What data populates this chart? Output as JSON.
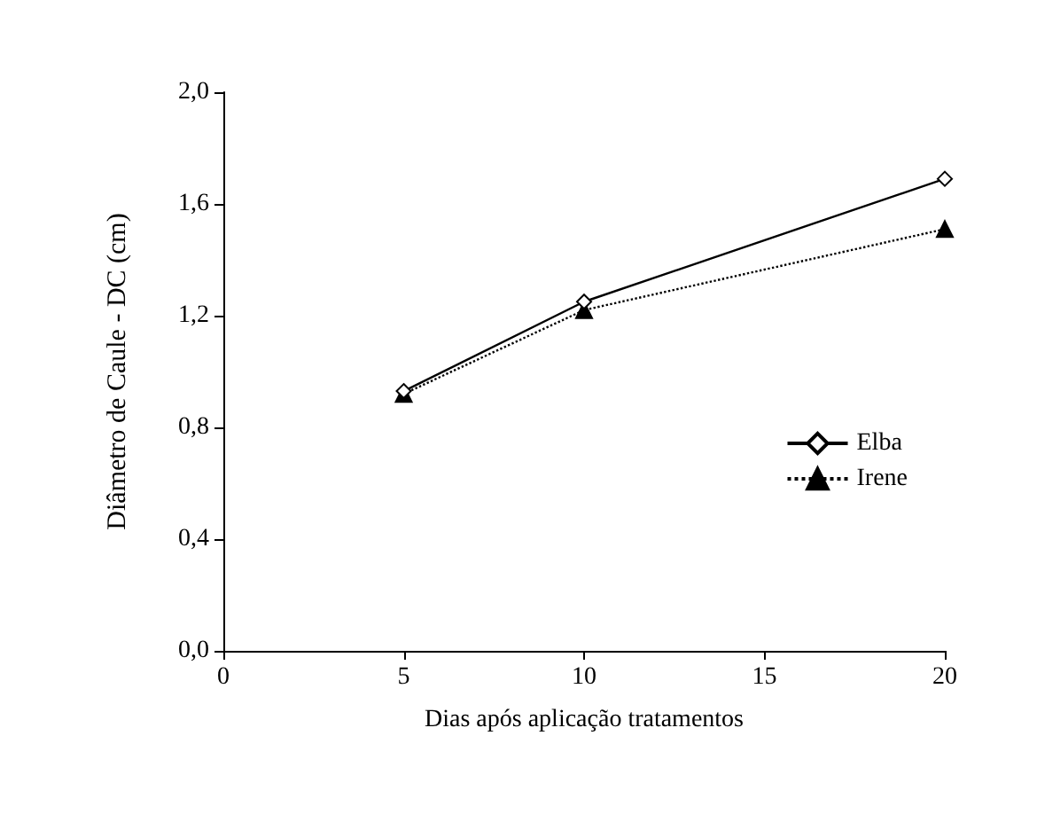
{
  "chart_data": {
    "type": "line",
    "xlabel": "Dias após aplicação tratamentos",
    "ylabel": "Diâmetro de Caule - DC (cm)",
    "x": [
      5,
      10,
      20
    ],
    "series": [
      {
        "name": "Elba",
        "color": "#000000",
        "values": [
          0.93,
          1.25,
          1.69
        ],
        "marker": "diamond",
        "line_style": "solid"
      },
      {
        "name": "Irene",
        "color": "#000000",
        "values": [
          0.92,
          1.22,
          1.51
        ],
        "marker": "triangle",
        "line_style": "dotted"
      }
    ],
    "xlim": [
      0,
      20
    ],
    "xticks": [
      0,
      5,
      10,
      15,
      20
    ],
    "ylim": [
      0,
      2
    ],
    "yticks": [
      {
        "value": 0,
        "label": "0,0"
      },
      {
        "value": 0.4,
        "label": "0,4"
      },
      {
        "value": 0.8,
        "label": "0,8"
      },
      {
        "value": 1.2,
        "label": "1,2"
      },
      {
        "value": 1.6,
        "label": "1,6"
      },
      {
        "value": 2,
        "label": "2,0"
      }
    ],
    "grid": false,
    "legend": "right"
  }
}
